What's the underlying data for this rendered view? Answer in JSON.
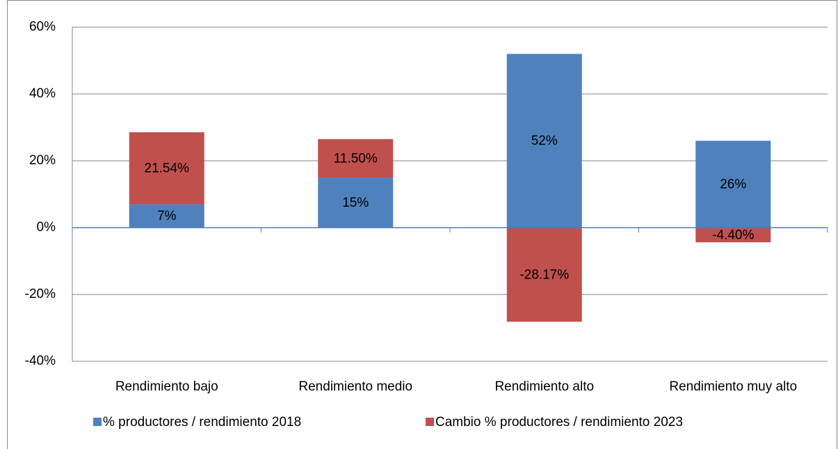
{
  "chart_data": {
    "type": "stacked_bar",
    "categories": [
      "Rendimiento bajo",
      "Rendimiento medio",
      "Rendimiento alto",
      "Rendimiento muy alto"
    ],
    "series": [
      {
        "name": "% productores / rendimiento 2018",
        "color": "#4f81bd",
        "values": [
          7,
          15,
          52,
          26
        ],
        "value_labels": [
          "7%",
          "15%",
          "52%",
          "26%"
        ]
      },
      {
        "name": "Cambio % productores / rendimiento 2023",
        "color": "#c0504d",
        "values": [
          21.54,
          11.5,
          -28.17,
          -4.4
        ],
        "value_labels": [
          "21.54%",
          "11.50%",
          "-28.17%",
          "-4.40%"
        ]
      }
    ],
    "ylim": [
      -40,
      60
    ],
    "yticks": [
      {
        "value": -40,
        "label": "-40%"
      },
      {
        "value": -20,
        "label": "-20%"
      },
      {
        "value": 0,
        "label": "0%"
      },
      {
        "value": 20,
        "label": "20%"
      },
      {
        "value": 40,
        "label": "40%"
      },
      {
        "value": 60,
        "label": "60%"
      }
    ],
    "grid": true,
    "legend": "bottom"
  }
}
